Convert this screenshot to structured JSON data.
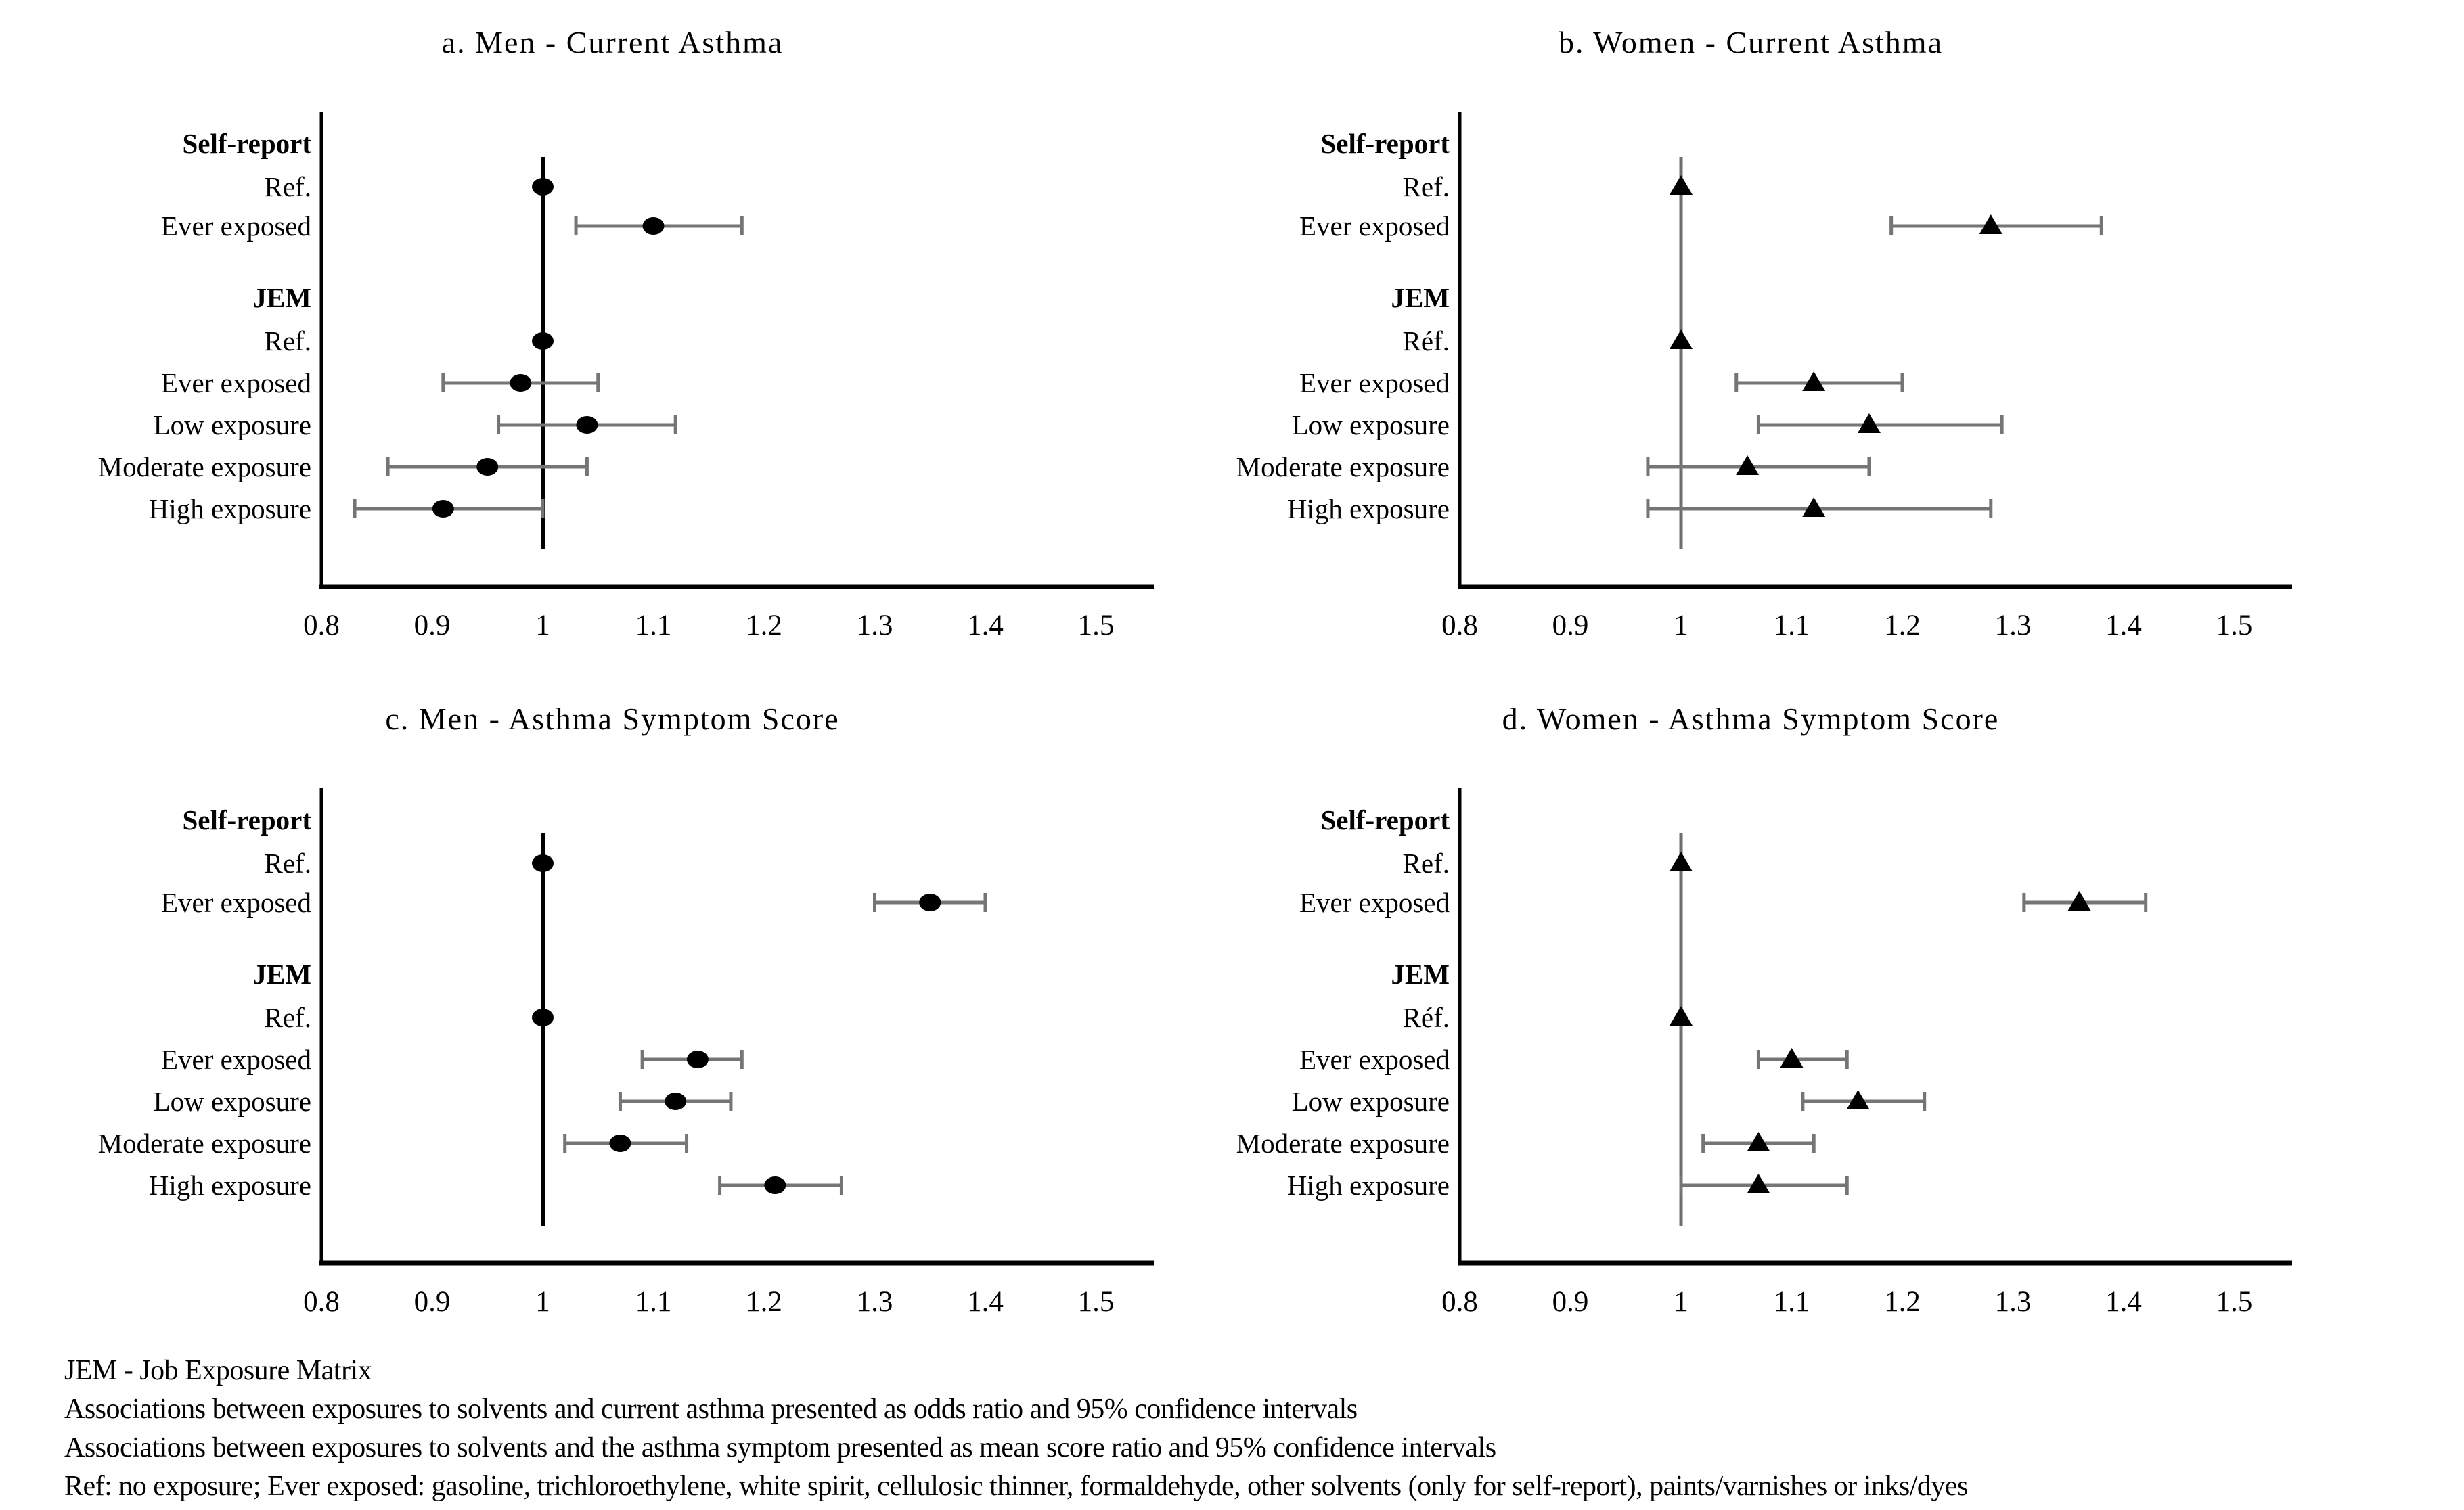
{
  "figure": {
    "background": "#ffffff",
    "text_color": "#000000",
    "axis_color": "#000000",
    "ci_color": "#757575",
    "marker_color": "#000000"
  },
  "footnotes": {
    "lines": [
      "JEM - Job Exposure Matrix",
      "Associations between exposures to solvents and current asthma presented as odds ratio and 95% confidence intervals",
      "Associations between exposures to solvents and the asthma symptom presented as mean score ratio and 95% confidence intervals",
      "Ref: no exposure; Ever exposed: gasoline, trichloroethylene, white spirit, cellulosic thinner, formaldehyde, other solvents (only for self-report), paints/varnishes or inks/dyes"
    ]
  },
  "chart_data": [
    {
      "type": "forest",
      "panel": "a",
      "title": "a. Men - Current Asthma",
      "marker": "circle",
      "measure": "odds ratio",
      "ref_line": {
        "x": 1,
        "color": "#000000",
        "width": 6
      },
      "x_axis": {
        "min": 0.8,
        "max": 1.5,
        "tick_step": 0.1,
        "tick_labels": [
          "0.8",
          "0.9",
          "1",
          "1.1",
          "1.2",
          "1.3",
          "1.4",
          "1.5"
        ]
      },
      "rows": [
        {
          "label": "Self-report",
          "header": true
        },
        {
          "label": "Ref.",
          "value": 1.0
        },
        {
          "label": "Ever exposed",
          "value": 1.1,
          "ci": [
            1.03,
            1.18
          ]
        },
        {
          "spacer": true
        },
        {
          "label": "JEM",
          "header": true
        },
        {
          "label": "Ref.",
          "value": 1.0
        },
        {
          "label": "Ever exposed",
          "value": 0.98,
          "ci": [
            0.91,
            1.05
          ]
        },
        {
          "label": "Low exposure",
          "value": 1.04,
          "ci": [
            0.96,
            1.12
          ]
        },
        {
          "label": "Moderate exposure",
          "value": 0.95,
          "ci": [
            0.86,
            1.04
          ]
        },
        {
          "label": "High exposure",
          "value": 0.91,
          "ci": [
            0.83,
            1.0
          ]
        }
      ]
    },
    {
      "type": "forest",
      "panel": "b",
      "title": "b. Women - Current Asthma",
      "marker": "triangle",
      "measure": "odds ratio",
      "ref_line": {
        "x": 1,
        "color": "#6e6e6e",
        "width": 5
      },
      "x_axis": {
        "min": 0.8,
        "max": 1.5,
        "tick_step": 0.1,
        "tick_labels": [
          "0.8",
          "0.9",
          "1",
          "1.1",
          "1.2",
          "1.3",
          "1.4",
          "1.5"
        ]
      },
      "rows": [
        {
          "label": "Self-report",
          "header": true
        },
        {
          "label": "Ref.",
          "value": 1.0
        },
        {
          "label": "Ever exposed",
          "value": 1.28,
          "ci": [
            1.19,
            1.38
          ]
        },
        {
          "spacer": true
        },
        {
          "label": "JEM",
          "header": true
        },
        {
          "label": "Réf.",
          "value": 1.0
        },
        {
          "label": "Ever exposed",
          "value": 1.12,
          "ci": [
            1.05,
            1.2
          ]
        },
        {
          "label": "Low exposure",
          "value": 1.17,
          "ci": [
            1.07,
            1.29
          ]
        },
        {
          "label": "Moderate exposure",
          "value": 1.06,
          "ci": [
            0.97,
            1.17
          ]
        },
        {
          "label": "High exposure",
          "value": 1.12,
          "ci": [
            0.97,
            1.28
          ]
        }
      ]
    },
    {
      "type": "forest",
      "panel": "c",
      "title": "c. Men - Asthma Symptom Score",
      "marker": "circle",
      "measure": "mean score ratio",
      "ref_line": {
        "x": 1,
        "color": "#000000",
        "width": 6
      },
      "x_axis": {
        "min": 0.8,
        "max": 1.5,
        "tick_step": 0.1,
        "tick_labels": [
          "0.8",
          "0.9",
          "1",
          "1.1",
          "1.2",
          "1.3",
          "1.4",
          "1.5"
        ]
      },
      "rows": [
        {
          "label": "Self-report",
          "header": true
        },
        {
          "label": "Ref.",
          "value": 1.0
        },
        {
          "label": "Ever exposed",
          "value": 1.35,
          "ci": [
            1.3,
            1.4
          ]
        },
        {
          "spacer": true
        },
        {
          "label": "JEM",
          "header": true
        },
        {
          "label": "Ref.",
          "value": 1.0
        },
        {
          "label": "Ever exposed",
          "value": 1.14,
          "ci": [
            1.09,
            1.18
          ]
        },
        {
          "label": "Low exposure",
          "value": 1.12,
          "ci": [
            1.07,
            1.17
          ]
        },
        {
          "label": "Moderate exposure",
          "value": 1.07,
          "ci": [
            1.02,
            1.13
          ]
        },
        {
          "label": "High exposure",
          "value": 1.21,
          "ci": [
            1.16,
            1.27
          ]
        }
      ]
    },
    {
      "type": "forest",
      "panel": "d",
      "title": "d. Women - Asthma Symptom Score",
      "marker": "triangle",
      "measure": "mean score ratio",
      "ref_line": {
        "x": 1,
        "color": "#6e6e6e",
        "width": 5
      },
      "x_axis": {
        "min": 0.8,
        "max": 1.5,
        "tick_step": 0.1,
        "tick_labels": [
          "0.8",
          "0.9",
          "1",
          "1.1",
          "1.2",
          "1.3",
          "1.4",
          "1.5"
        ]
      },
      "rows": [
        {
          "label": "Self-report",
          "header": true
        },
        {
          "label": "Ref.",
          "value": 1.0
        },
        {
          "label": "Ever exposed",
          "value": 1.36,
          "ci": [
            1.31,
            1.42
          ]
        },
        {
          "spacer": true
        },
        {
          "label": "JEM",
          "header": true
        },
        {
          "label": "Réf.",
          "value": 1.0
        },
        {
          "label": "Ever exposed",
          "value": 1.1,
          "ci": [
            1.07,
            1.15
          ]
        },
        {
          "label": "Low exposure",
          "value": 1.16,
          "ci": [
            1.11,
            1.22
          ]
        },
        {
          "label": "Moderate exposure",
          "value": 1.07,
          "ci": [
            1.02,
            1.12
          ]
        },
        {
          "label": "High exposure",
          "value": 1.07,
          "ci": [
            1.0,
            1.15
          ]
        }
      ]
    }
  ]
}
